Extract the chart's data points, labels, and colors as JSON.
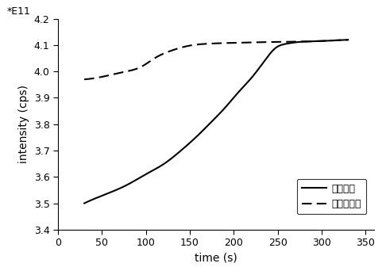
{
  "title": "",
  "xlabel": "time (s)",
  "ylabel": "intensity (cps)",
  "scale_label": "*E11",
  "xlim": [
    0,
    360
  ],
  "ylim": [
    3.4,
    4.2
  ],
  "xticks": [
    0,
    50,
    100,
    150,
    200,
    250,
    300,
    350
  ],
  "yticks": [
    3.4,
    3.5,
    3.6,
    3.7,
    3.8,
    3.9,
    4.0,
    4.1,
    4.2
  ],
  "legend1": "传统方法",
  "legend2": "本发明方法",
  "line_color": "#000000",
  "figsize": [
    4.86,
    3.37
  ],
  "dpi": 100,
  "solid_x": [
    30,
    55,
    80,
    100,
    120,
    140,
    160,
    175,
    190,
    205,
    220,
    235,
    248,
    260,
    275,
    290,
    310,
    330
  ],
  "solid_y": [
    3.5,
    3.535,
    3.572,
    3.61,
    3.648,
    3.7,
    3.76,
    3.81,
    3.862,
    3.92,
    3.975,
    4.04,
    4.09,
    4.105,
    4.112,
    4.114,
    4.117,
    4.12
  ],
  "dashed_x": [
    30,
    55,
    75,
    95,
    110,
    130,
    150,
    170,
    195,
    220,
    250,
    280,
    310,
    330
  ],
  "dashed_y": [
    3.97,
    3.983,
    3.998,
    4.018,
    4.05,
    4.08,
    4.098,
    4.105,
    4.108,
    4.11,
    4.112,
    4.113,
    4.117,
    4.12
  ]
}
